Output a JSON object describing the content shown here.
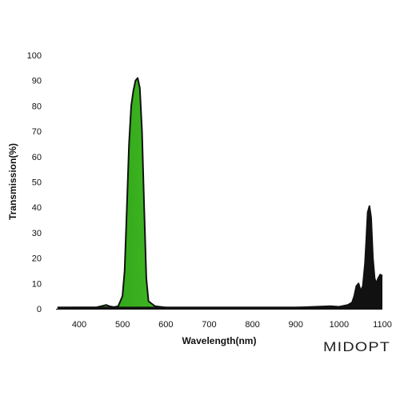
{
  "chart_data": {
    "type": "area",
    "xlabel": "Wavelength(nm)",
    "ylabel": "Transmission(%)",
    "xlim": [
      350,
      1100
    ],
    "ylim": [
      0,
      100
    ],
    "x_ticks": [
      400,
      500,
      600,
      700,
      800,
      900,
      1000,
      1100
    ],
    "y_ticks": [
      0,
      10,
      20,
      30,
      40,
      50,
      60,
      70,
      80,
      90,
      100
    ],
    "grid": false,
    "legend": "none",
    "series": [
      {
        "color": "#3fbf1f",
        "x": [
          350,
          440,
          455,
          462,
          470,
          480,
          490,
          500,
          505,
          510,
          515,
          520,
          525,
          530,
          535,
          540,
          545,
          550,
          555,
          560,
          575,
          600,
          1100
        ],
        "y": [
          0.5,
          0.6,
          1.2,
          1.5,
          1.0,
          0.7,
          1.0,
          5,
          15,
          40,
          65,
          80,
          86,
          90,
          91,
          87,
          70,
          40,
          12,
          3,
          1,
          0.5,
          0.5
        ]
      },
      {
        "color": "#111111",
        "x": [
          350,
          900,
          980,
          1000,
          1020,
          1030,
          1035,
          1040,
          1045,
          1050,
          1055,
          1060,
          1063,
          1066,
          1070,
          1074,
          1078,
          1082,
          1086,
          1090,
          1095,
          1100
        ],
        "y": [
          0.5,
          0.5,
          1.0,
          0.8,
          1.5,
          2.5,
          5,
          9,
          10,
          7,
          9,
          18,
          28,
          38,
          40.5,
          36,
          20,
          12,
          10,
          12,
          13.5,
          13
        ]
      }
    ]
  },
  "logo_text": "MIDOPT"
}
